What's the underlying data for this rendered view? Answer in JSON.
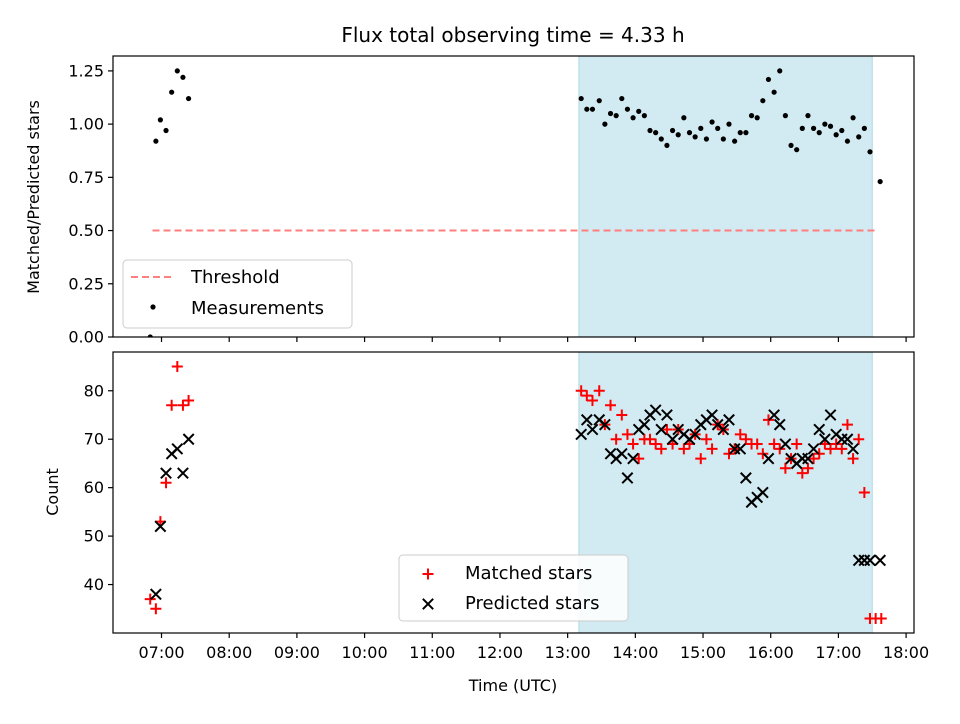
{
  "figure_title": "Flux total observing time = 4.33 h",
  "colors": {
    "shade": "#add8e6",
    "threshold": "#ff7f7f",
    "measurement": "#000000",
    "matched": "#ff0000",
    "predicted": "#000000"
  },
  "chart_data": [
    {
      "type": "scatter",
      "panel": "top",
      "title": "Flux total observing time = 4.33 h",
      "xlabel": "",
      "ylabel": "Matched/Predicted stars",
      "ylim": [
        0,
        1.32
      ],
      "yticks": [
        "0.00",
        "0.25",
        "0.50",
        "0.75",
        "1.00",
        "1.25"
      ],
      "xlim": [
        "06:17",
        "18:07"
      ],
      "shaded_span": [
        "13:10",
        "17:30"
      ],
      "legend_position": "lower-left",
      "series": [
        {
          "name": "Threshold",
          "kind": "dashed-line",
          "x": [
            "06:52",
            "17:35"
          ],
          "y": [
            0.5,
            0.5
          ]
        },
        {
          "name": "Measurements",
          "kind": "points",
          "x": [
            "06:50",
            "06:55",
            "06:59",
            "07:04",
            "07:09",
            "07:14",
            "07:19",
            "07:24",
            "13:12",
            "13:17",
            "13:22",
            "13:28",
            "13:33",
            "13:38",
            "13:43",
            "13:48",
            "13:53",
            "13:58",
            "14:03",
            "14:08",
            "14:13",
            "14:18",
            "14:23",
            "14:28",
            "14:33",
            "14:38",
            "14:43",
            "14:48",
            "14:53",
            "14:58",
            "15:03",
            "15:08",
            "15:13",
            "15:18",
            "15:23",
            "15:28",
            "15:33",
            "15:38",
            "15:43",
            "15:48",
            "15:53",
            "15:58",
            "16:03",
            "16:08",
            "16:13",
            "16:18",
            "16:23",
            "16:28",
            "16:33",
            "16:38",
            "16:43",
            "16:48",
            "16:53",
            "16:58",
            "17:03",
            "17:08",
            "17:13",
            "17:18",
            "17:23",
            "17:28",
            "17:37"
          ],
          "y": [
            0.0,
            0.92,
            1.02,
            0.97,
            1.15,
            1.25,
            1.22,
            1.12,
            1.12,
            1.07,
            1.07,
            1.11,
            1.0,
            1.05,
            1.04,
            1.12,
            1.07,
            1.03,
            1.06,
            1.04,
            0.97,
            0.96,
            0.93,
            0.9,
            0.97,
            0.95,
            1.03,
            0.96,
            0.94,
            0.98,
            0.93,
            1.01,
            0.98,
            0.93,
            1.0,
            0.92,
            0.96,
            0.96,
            1.04,
            1.03,
            1.11,
            1.21,
            1.15,
            1.25,
            1.04,
            0.9,
            0.88,
            0.98,
            1.04,
            0.98,
            0.96,
            1.0,
            0.99,
            0.95,
            0.97,
            0.92,
            1.03,
            0.94,
            0.98,
            0.87,
            0.73
          ]
        }
      ]
    },
    {
      "type": "scatter",
      "panel": "bottom",
      "xlabel": "Time (UTC)",
      "ylabel": "Count",
      "ylim": [
        30,
        88
      ],
      "yticks": [
        "40",
        "50",
        "60",
        "70",
        "80"
      ],
      "xlim": [
        "06:17",
        "18:07"
      ],
      "xticks": [
        "07:00",
        "08:00",
        "09:00",
        "10:00",
        "11:00",
        "12:00",
        "13:00",
        "14:00",
        "15:00",
        "16:00",
        "17:00",
        "18:00"
      ],
      "shaded_span": [
        "13:10",
        "17:30"
      ],
      "legend_position": "lower-center",
      "series": [
        {
          "name": "Matched stars",
          "marker": "plus",
          "x": [
            "06:50",
            "06:55",
            "06:59",
            "07:04",
            "07:09",
            "07:14",
            "07:19",
            "07:24",
            "13:12",
            "13:17",
            "13:22",
            "13:28",
            "13:33",
            "13:38",
            "13:43",
            "13:48",
            "13:53",
            "13:58",
            "14:03",
            "14:08",
            "14:13",
            "14:18",
            "14:23",
            "14:28",
            "14:33",
            "14:38",
            "14:43",
            "14:48",
            "14:53",
            "14:58",
            "15:03",
            "15:08",
            "15:13",
            "15:18",
            "15:23",
            "15:28",
            "15:33",
            "15:38",
            "15:43",
            "15:48",
            "15:53",
            "15:58",
            "16:03",
            "16:08",
            "16:13",
            "16:18",
            "16:23",
            "16:28",
            "16:33",
            "16:38",
            "16:43",
            "16:48",
            "16:53",
            "16:58",
            "17:03",
            "17:08",
            "17:13",
            "17:18",
            "17:23",
            "17:28",
            "17:33",
            "17:38"
          ],
          "y": [
            37,
            35,
            53,
            61,
            77,
            85,
            77,
            78,
            80,
            79,
            78,
            80,
            73,
            77,
            70,
            75,
            71,
            69,
            66,
            70,
            70,
            69,
            68,
            72,
            69,
            72,
            68,
            69,
            71,
            66,
            70,
            68,
            73,
            72,
            67,
            68,
            71,
            70,
            69,
            69,
            67,
            74,
            69,
            68,
            64,
            66,
            69,
            63,
            64,
            66,
            67,
            69,
            68,
            69,
            68,
            73,
            66,
            70,
            59,
            33,
            33,
            33
          ]
        },
        {
          "name": "Predicted stars",
          "marker": "x",
          "x": [
            "06:55",
            "06:59",
            "07:04",
            "07:09",
            "07:14",
            "07:19",
            "07:24",
            "13:12",
            "13:17",
            "13:22",
            "13:28",
            "13:33",
            "13:38",
            "13:43",
            "13:48",
            "13:53",
            "13:58",
            "14:03",
            "14:08",
            "14:13",
            "14:18",
            "14:23",
            "14:28",
            "14:33",
            "14:38",
            "14:43",
            "14:48",
            "14:53",
            "14:58",
            "15:03",
            "15:08",
            "15:13",
            "15:18",
            "15:23",
            "15:28",
            "15:33",
            "15:38",
            "15:43",
            "15:48",
            "15:53",
            "15:58",
            "16:03",
            "16:08",
            "16:13",
            "16:18",
            "16:23",
            "16:28",
            "16:33",
            "16:38",
            "16:43",
            "16:48",
            "16:53",
            "16:58",
            "17:03",
            "17:08",
            "17:13",
            "17:18",
            "17:23",
            "17:28",
            "17:37"
          ],
          "y": [
            38,
            52,
            63,
            67,
            68,
            63,
            70,
            71,
            74,
            72,
            74,
            73,
            67,
            66,
            67,
            62,
            66,
            72,
            73,
            75,
            76,
            72,
            75,
            70,
            72,
            71,
            70,
            71,
            73,
            74,
            75,
            73,
            72,
            74,
            68,
            68,
            62,
            57,
            58,
            59,
            66,
            75,
            73,
            69,
            66,
            65,
            66,
            66,
            68,
            72,
            70,
            75,
            71,
            70,
            70,
            68,
            45,
            45,
            45,
            45
          ]
        }
      ]
    }
  ]
}
